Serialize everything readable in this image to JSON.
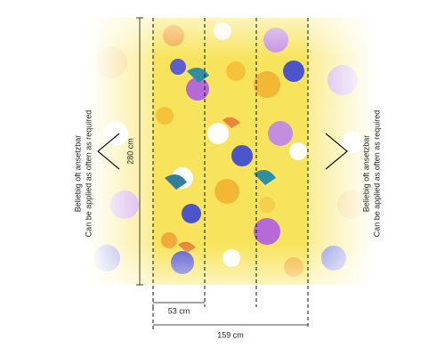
{
  "dimensions": {
    "height": "280 cm",
    "panel_width": "53 cm",
    "total_width": "159 cm"
  },
  "notes": [
    {
      "de": "Beliebig oft ansetzbar",
      "en": "Can be applied as often as required"
    },
    {
      "de": "Beliebig oft ansetzbar",
      "en": "Can be applied as often as required"
    }
  ]
}
